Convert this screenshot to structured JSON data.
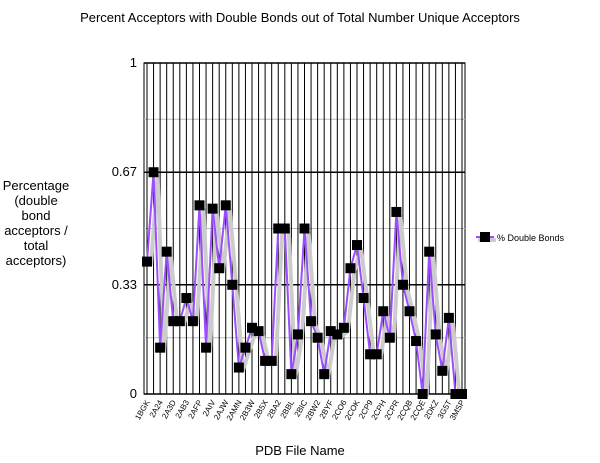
{
  "chart_data": {
    "type": "line",
    "title": "Percent Acceptors with Double Bonds out of Total Number Unique Acceptors",
    "xlabel": "PDB File Name",
    "ylabel": "Percentage (double bond acceptors / total acceptors)",
    "categories": [
      "1BGK",
      null,
      "2A24",
      null,
      "2A3D",
      null,
      "2AB3",
      null,
      "2AFP",
      null,
      "2AIV",
      null,
      "2AJW",
      null,
      "2AMN",
      null,
      "2B3W",
      null,
      "2B5X",
      null,
      "2BA2",
      null,
      "2BBL",
      null,
      "2BIC",
      null,
      "2BW2",
      null,
      "2BYF",
      null,
      "2CO6",
      null,
      "2COK",
      null,
      "2CP9",
      null,
      "2CPH",
      null,
      "2CPR",
      null,
      "2CQB",
      null,
      "2CQE",
      null,
      "2DKZ",
      null,
      "3G5T",
      null,
      "3MSP"
    ],
    "series": [
      {
        "name": "% Double Bonds",
        "color": "#9b4dff",
        "values": [
          0.4,
          0.67,
          0.14,
          0.43,
          0.22,
          0.22,
          0.29,
          0.22,
          0.57,
          0.14,
          0.56,
          0.38,
          0.57,
          0.33,
          0.08,
          0.14,
          0.2,
          0.19,
          0.1,
          0.1,
          0.5,
          0.5,
          0.06,
          0.18,
          0.5,
          0.22,
          0.17,
          0.06,
          0.19,
          0.18,
          0.2,
          0.38,
          0.45,
          0.29,
          0.12,
          0.12,
          0.25,
          0.17,
          0.55,
          0.33,
          0.25,
          0.16,
          0,
          0.43,
          0.18,
          0.07,
          0.23,
          0,
          0
        ]
      }
    ],
    "ylim": [
      0,
      1
    ],
    "yticks": [
      0,
      0.33,
      0.67,
      1
    ],
    "minor_yticks": [
      0.17,
      0.5,
      0.83
    ],
    "grid": true,
    "legend": "right"
  }
}
